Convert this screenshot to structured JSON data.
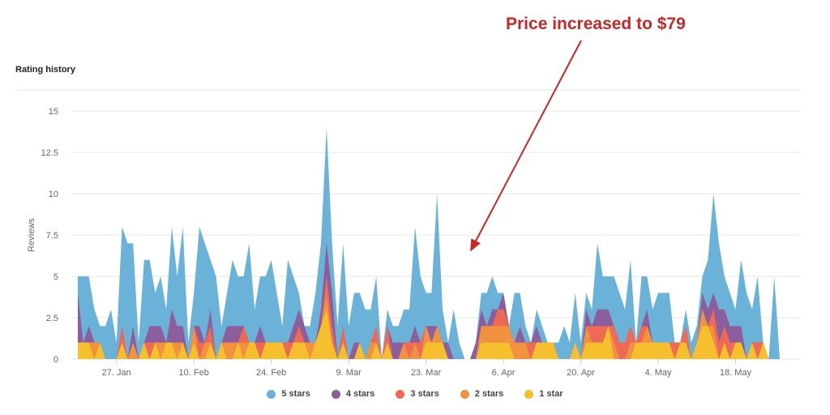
{
  "page": {
    "title": "Rating history",
    "annotation": "Price increased to $79"
  },
  "chart_data": {
    "type": "area",
    "stacked": true,
    "title": "Rating history",
    "xlabel": "",
    "ylabel": "Reviews",
    "ylim": [
      0,
      15
    ],
    "yticks": [
      0,
      2.5,
      5,
      7.5,
      10,
      12.5,
      15
    ],
    "y_tick_labels": [
      "0",
      "2.5",
      "5",
      "7.5",
      "10",
      "12.5",
      "15"
    ],
    "x_start": "2020-01-20",
    "x_end": "2020-05-19",
    "x_tick_labels": [
      {
        "day": 7,
        "label": "27. Jan"
      },
      {
        "day": 21,
        "label": "10. Feb"
      },
      {
        "day": 35,
        "label": "24. Feb"
      },
      {
        "day": 49,
        "label": "9. Mar"
      },
      {
        "day": 63,
        "label": "23. Mar"
      },
      {
        "day": 77,
        "label": "6. Apr"
      },
      {
        "day": 91,
        "label": "20. Apr"
      },
      {
        "day": 105,
        "label": "4. May"
      },
      {
        "day": 119,
        "label": "18. May"
      }
    ],
    "annotation": {
      "text": "Price increased to $79",
      "day": 71,
      "value": 6.5
    },
    "series": [
      {
        "name": "1 star",
        "color": "#f5bf2e",
        "values": [
          1,
          1,
          1,
          0,
          1,
          0,
          0,
          0,
          1,
          0,
          0,
          0,
          1,
          0,
          1,
          0,
          1,
          1,
          0,
          1,
          0,
          1,
          0,
          0,
          1,
          0,
          1,
          0,
          0,
          1,
          0,
          1,
          1,
          0,
          1,
          1,
          1,
          1,
          0,
          1,
          1,
          1,
          0,
          1,
          2,
          3,
          1,
          0,
          1,
          0,
          0,
          1,
          0,
          0,
          1,
          0,
          1,
          0,
          0,
          0,
          0,
          0,
          0,
          1,
          1,
          1,
          1,
          0,
          0,
          0,
          0,
          0,
          0,
          1,
          1,
          1,
          1,
          1,
          1,
          0,
          0,
          0,
          0,
          1,
          1,
          1,
          1,
          0,
          0,
          0,
          1,
          0,
          1,
          1,
          1,
          1,
          2,
          0,
          0,
          0,
          0,
          1,
          1,
          1,
          1,
          1,
          1,
          1,
          0,
          1,
          1,
          0,
          1,
          2,
          2,
          1,
          0,
          1,
          0,
          1,
          1,
          0,
          1,
          0,
          1,
          0,
          0,
          0
        ]
      },
      {
        "name": "2 stars",
        "color": "#f0923f",
        "values": [
          0,
          0,
          0,
          1,
          0,
          0,
          0,
          0,
          0,
          0,
          1,
          0,
          0,
          0,
          0,
          1,
          0,
          0,
          1,
          0,
          0,
          1,
          0,
          1,
          0,
          0,
          0,
          1,
          1,
          0,
          1,
          0,
          0,
          0,
          0,
          0,
          0,
          0,
          0,
          0,
          0,
          0,
          1,
          0,
          0,
          1,
          0,
          0,
          0,
          0,
          0,
          0,
          0,
          1,
          0,
          0,
          0,
          0,
          0,
          1,
          0,
          1,
          0,
          1,
          0,
          1,
          0,
          0,
          0,
          0,
          0,
          0,
          0,
          1,
          1,
          1,
          1,
          1,
          1,
          1,
          1,
          1,
          0,
          0,
          0,
          0,
          0,
          0,
          0,
          0,
          0,
          0,
          1,
          0,
          0,
          0,
          0,
          1,
          0,
          0,
          1,
          0,
          0,
          1,
          0,
          0,
          0,
          0,
          0,
          0,
          0,
          0,
          0,
          1,
          0,
          1,
          0,
          0,
          0,
          0,
          0,
          0,
          0,
          0,
          0,
          0,
          0,
          0
        ]
      },
      {
        "name": "3 stars",
        "color": "#ee6a55",
        "values": [
          0,
          0,
          0,
          0,
          0,
          0,
          0,
          0,
          1,
          0,
          0,
          0,
          0,
          1,
          0,
          0,
          0,
          0,
          0,
          0,
          0,
          0,
          1,
          0,
          1,
          0,
          0,
          0,
          0,
          0,
          1,
          0,
          0,
          1,
          0,
          0,
          0,
          0,
          1,
          0,
          1,
          0,
          0,
          0,
          0,
          1,
          1,
          0,
          1,
          0,
          0,
          0,
          0,
          0,
          1,
          0,
          1,
          0,
          0,
          0,
          1,
          0,
          1,
          0,
          0,
          0,
          0,
          0,
          0,
          0,
          0,
          0,
          0,
          0,
          0,
          0,
          1,
          1,
          0,
          0,
          0,
          0,
          1,
          0,
          0,
          0,
          0,
          0,
          0,
          0,
          0,
          0,
          0,
          1,
          1,
          1,
          0,
          1,
          1,
          1,
          1,
          0,
          1,
          0,
          0,
          0,
          0,
          0,
          1,
          0,
          1,
          0,
          0,
          0,
          0,
          1,
          1,
          1,
          1,
          0,
          0,
          0,
          0,
          1,
          0,
          0,
          0,
          0
        ]
      },
      {
        "name": "4 stars",
        "color": "#8c5e9d",
        "values": [
          3,
          0,
          1,
          0,
          0,
          0,
          0,
          0,
          0,
          0,
          1,
          0,
          0,
          1,
          1,
          1,
          0,
          2,
          1,
          1,
          0,
          0,
          1,
          0,
          1,
          0,
          0,
          1,
          1,
          1,
          0,
          0,
          0,
          1,
          0,
          0,
          0,
          0,
          0,
          1,
          1,
          1,
          0,
          0,
          1,
          2,
          2,
          0,
          0,
          0,
          1,
          0,
          0,
          0,
          0,
          0,
          0,
          1,
          1,
          0,
          0,
          1,
          0,
          0,
          1,
          0,
          0,
          1,
          0,
          0,
          0,
          0,
          1,
          1,
          0,
          1,
          0,
          1,
          0,
          0,
          1,
          0,
          0,
          1,
          0,
          0,
          0,
          0,
          0,
          0,
          0,
          0,
          1,
          0,
          1,
          1,
          1,
          0,
          0,
          0,
          0,
          0,
          0,
          1,
          0,
          0,
          0,
          0,
          0,
          0,
          0,
          0,
          0,
          1,
          1,
          1,
          2,
          1,
          1,
          1,
          1,
          0,
          0,
          0,
          0,
          0,
          0,
          0
        ]
      },
      {
        "name": "5 stars",
        "color": "#6bb2d8",
        "values": [
          1,
          4,
          3,
          2,
          1,
          2,
          3,
          1,
          6,
          7,
          5,
          1,
          5,
          4,
          2,
          3,
          2,
          5,
          3,
          6,
          1,
          2,
          6,
          6,
          3,
          5,
          1,
          2,
          4,
          3,
          3,
          6,
          2,
          3,
          4,
          5,
          3,
          1,
          5,
          3,
          1,
          0,
          1,
          3,
          4,
          7,
          3,
          2,
          5,
          2,
          3,
          3,
          3,
          2,
          3,
          0,
          1,
          1,
          1,
          2,
          2,
          6,
          4,
          2,
          2,
          8,
          2,
          0,
          3,
          1,
          0,
          0,
          0,
          1,
          2,
          2,
          1,
          0,
          0,
          3,
          2,
          1,
          0,
          1,
          1,
          0,
          0,
          1,
          2,
          1,
          3,
          1,
          1,
          1,
          4,
          2,
          2,
          3,
          3,
          2,
          4,
          0,
          3,
          2,
          2,
          3,
          3,
          3,
          0,
          0,
          1,
          1,
          1,
          1,
          3,
          6,
          4,
          2,
          2,
          1,
          4,
          4,
          2,
          4,
          0,
          0,
          5,
          0
        ]
      }
    ],
    "legend_position": "bottom-center"
  },
  "colors": {
    "grid": "#e6e6e6",
    "axis_text": "#666666",
    "annotation": "#c62828"
  }
}
